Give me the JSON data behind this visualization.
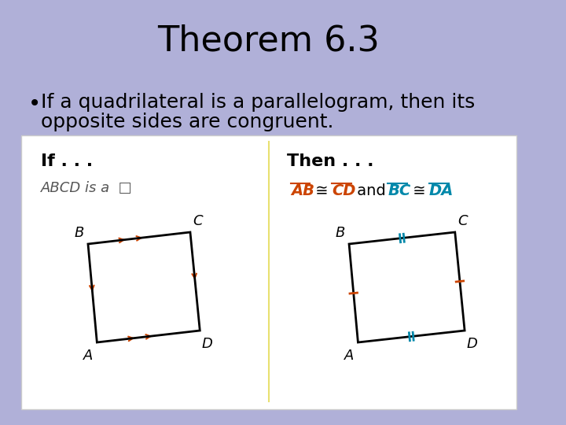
{
  "title": "Theorem 6.3",
  "bullet_line1": "If a quadrilateral is a parallelogram, then its",
  "bullet_line2": "opposite sides are congruent.",
  "bg_color": "#b0b0d8",
  "box_bg": "#ffffff",
  "title_fontsize": 32,
  "bullet_fontsize": 18,
  "if_text": "If . . .",
  "then_text": "Then . . .",
  "abcd_text": "ABCD is a",
  "eq_text1_orange": "AB",
  "eq_text1_mid": " ≅ ",
  "eq_text1_red": "CD",
  "eq_text1_and": " and ",
  "eq_text2_blue": "BC",
  "eq_text2_mid": " ≅ ",
  "eq_text2_teal": "DA",
  "orange_color": "#cc4400",
  "blue_color": "#0088aa",
  "dark_color": "#333333",
  "arrow_color": "#cc4400"
}
